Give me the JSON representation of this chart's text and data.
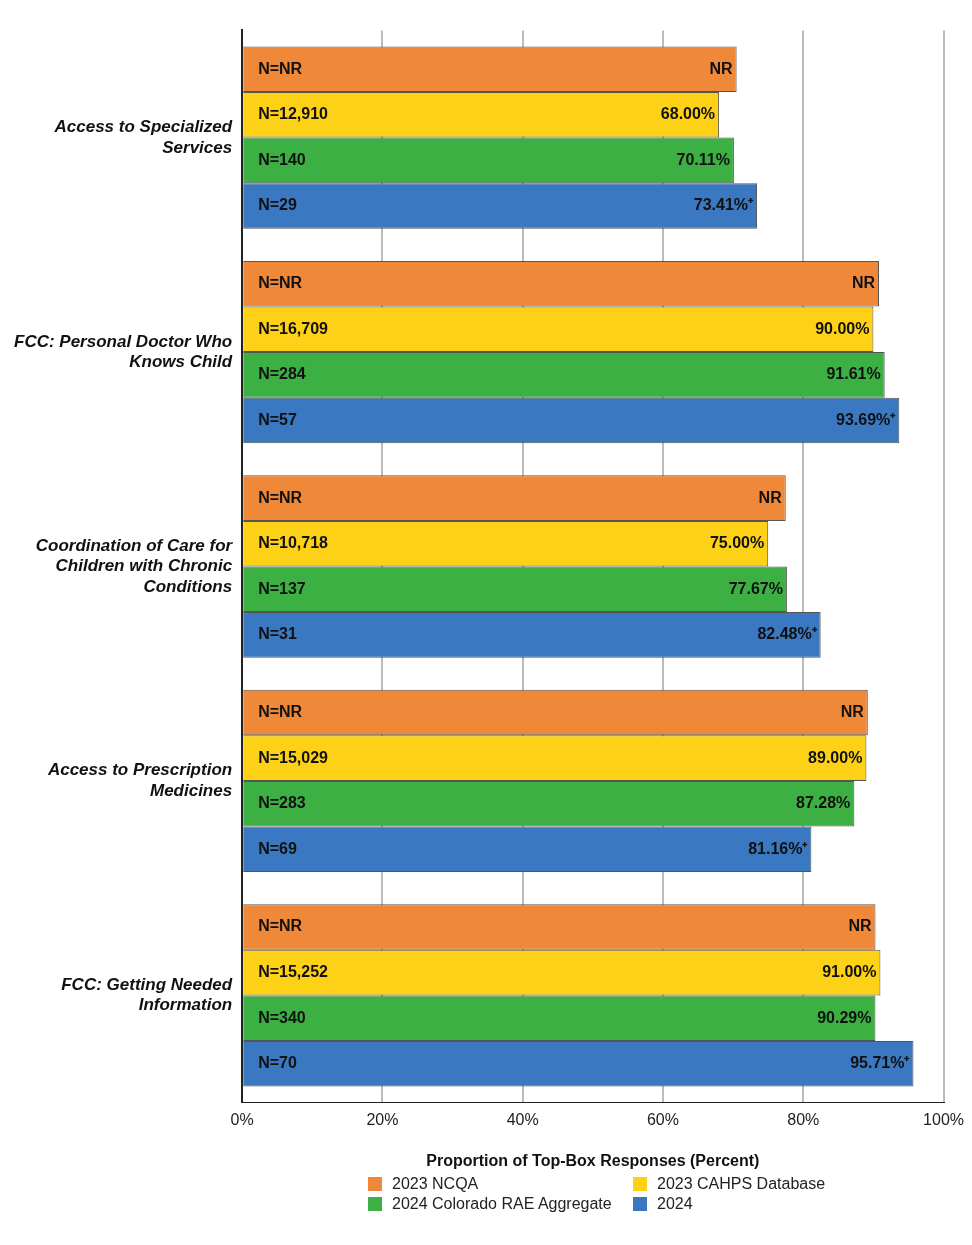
{
  "chart_data": {
    "type": "bar",
    "orientation": "horizontal",
    "xlabel": "Proportion of Top-Box Responses (Percent)",
    "categories": [
      "Access to Specialized Services",
      "FCC: Personal Doctor Who Knows Child",
      "Coordination of Care for Children with Chronic Conditions",
      "Access to Prescription Medicines",
      "FCC: Getting Needed Information"
    ],
    "series": [
      {
        "name": "2023 NCQA",
        "color": "#f0883a",
        "values": [
          70.5,
          90.8,
          77.5,
          89.2,
          90.3
        ],
        "value_labels": [
          "NR",
          "NR",
          "NR",
          "NR",
          "NR"
        ]
      },
      {
        "name": "2023 CAHPS Database",
        "color": "#fcd116",
        "values": [
          68.0,
          90.0,
          75.0,
          89.0,
          91.0
        ],
        "value_labels": [
          "68.00%",
          "90.00%",
          "75.00%",
          "89.00%",
          "91.00%"
        ]
      },
      {
        "name": "2024 Colorado RAE Aggregate",
        "color": "#3cb043",
        "values": [
          70.11,
          91.61,
          77.67,
          87.28,
          90.29
        ],
        "value_labels": [
          "70.11%",
          "91.61%",
          "77.67%",
          "87.28%",
          "90.29%"
        ]
      },
      {
        "name": "2024",
        "color": "#3a78c2",
        "values": [
          73.41,
          93.69,
          82.48,
          81.16,
          95.71
        ],
        "value_labels": [
          "73.41%⁺",
          "93.69%⁺",
          "82.48%⁺",
          "81.16%⁺",
          "95.71%⁺"
        ]
      }
    ],
    "annotations": [
      "N=NR",
      "N=12,910",
      "N=140",
      "N=29",
      "N=NR",
      "N=16,709",
      "N=284",
      "N=57",
      "N=NR",
      "N=10,718",
      "N=137",
      "N=31",
      "N=NR",
      "N=15,029",
      "N=283",
      "N=69",
      "N=NR",
      "N=15,252",
      "N=340",
      "N=70"
    ],
    "xlim": [
      0,
      100
    ],
    "xticks": [
      {
        "value": 0,
        "label": "0%"
      },
      {
        "value": 20,
        "label": "20%"
      },
      {
        "value": 40,
        "label": "40%"
      },
      {
        "value": 60,
        "label": "60%"
      },
      {
        "value": 80,
        "label": "80%"
      },
      {
        "value": 100,
        "label": "100%"
      }
    ],
    "grid": "x",
    "legend": "bottom"
  }
}
